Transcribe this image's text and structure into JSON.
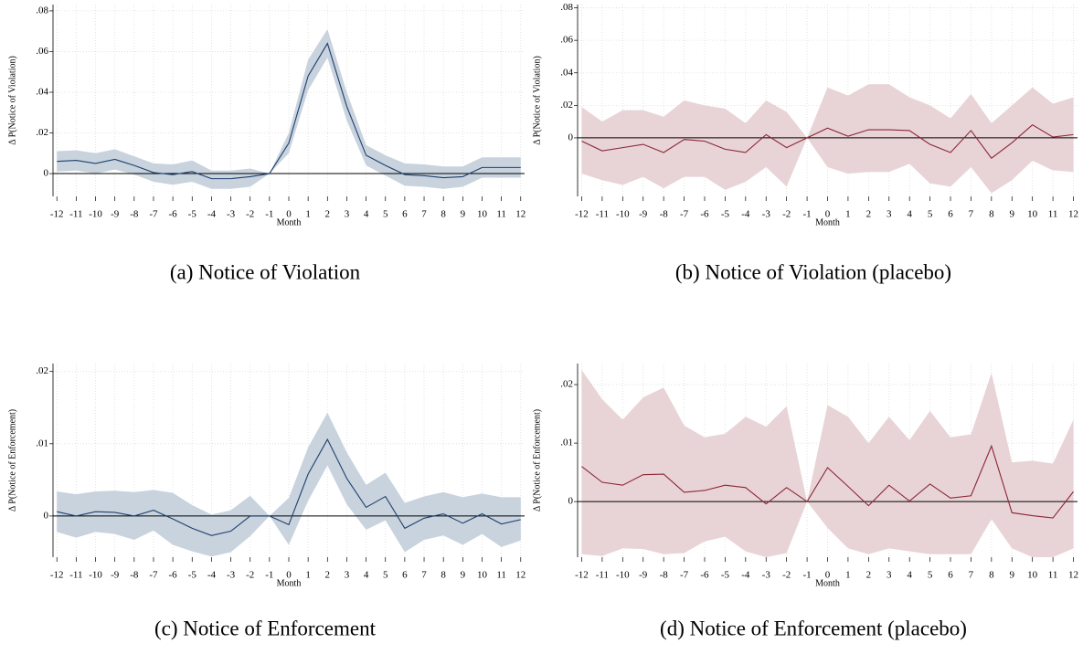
{
  "chart_data": [
    {
      "type": "line",
      "caption": "(a) Notice of Violation",
      "xlabel": "Month",
      "ylabel": "Δ P(Notice of Violation)",
      "x": [
        -12,
        -11,
        -10,
        -9,
        -8,
        -7,
        -6,
        -5,
        -4,
        -3,
        -2,
        -1,
        0,
        1,
        2,
        3,
        4,
        5,
        6,
        7,
        8,
        9,
        10,
        11,
        12
      ],
      "series": [
        {
          "color": "#1f3f6e",
          "band_color": "#c8d3de",
          "values": [
            0.006,
            0.0065,
            0.005,
            0.007,
            0.004,
            0.0005,
            -0.0005,
            0.001,
            -0.0025,
            -0.0025,
            -0.0015,
            0,
            0.015,
            0.048,
            0.064,
            0.033,
            0.009,
            0.004,
            -0.0005,
            -0.001,
            -0.002,
            -0.0015,
            0.003,
            0.003,
            0.003
          ],
          "upper": [
            0.011,
            0.0115,
            0.01,
            0.012,
            0.0085,
            0.005,
            0.0045,
            0.0065,
            0.0015,
            0.0015,
            0.0025,
            0,
            0.02,
            0.056,
            0.071,
            0.04,
            0.014,
            0.009,
            0.005,
            0.0045,
            0.0035,
            0.0035,
            0.008,
            0.008,
            0.008
          ],
          "lower": [
            0.001,
            0.0015,
            0,
            0.002,
            -0.0005,
            -0.004,
            -0.0055,
            -0.004,
            -0.0075,
            -0.0075,
            -0.0065,
            0,
            0.01,
            0.041,
            0.057,
            0.026,
            0.004,
            -0.001,
            -0.006,
            -0.0065,
            -0.0075,
            -0.0065,
            -0.002,
            -0.002,
            -0.002
          ]
        }
      ],
      "xlim": [
        -12.2,
        12.2
      ],
      "xticks": [
        -12,
        -11,
        -10,
        -9,
        -8,
        -7,
        -6,
        -5,
        -4,
        -3,
        -2,
        -1,
        0,
        1,
        2,
        3,
        4,
        5,
        6,
        7,
        8,
        9,
        10,
        11,
        12
      ],
      "ylim": [
        -0.0112,
        0.0831
      ],
      "yticks": [
        {
          "value": 0,
          "label": "0"
        },
        {
          "value": 0.02,
          "label": ".02"
        },
        {
          "value": 0.04,
          "label": ".04"
        },
        {
          "value": 0.06,
          "label": ".06"
        },
        {
          "value": 0.08,
          "label": ".08"
        }
      ],
      "reference_line": 0,
      "grid": true
    },
    {
      "type": "line",
      "caption": "(b) Notice of Violation (placebo)",
      "xlabel": "Month",
      "ylabel": "Δ P(Notice of Violation)",
      "x": [
        -12,
        -11,
        -10,
        -9,
        -8,
        -7,
        -6,
        -5,
        -4,
        -3,
        -2,
        -1,
        0,
        1,
        2,
        3,
        4,
        5,
        6,
        7,
        8,
        9,
        10,
        11,
        12
      ],
      "series": [
        {
          "color": "#8b2635",
          "band_color": "#e8d4d6",
          "values": [
            -0.002,
            -0.008,
            -0.006,
            -0.004,
            -0.009,
            -0.001,
            -0.002,
            -0.007,
            -0.009,
            0.002,
            -0.006,
            0,
            0.006,
            0.001,
            0.005,
            0.005,
            0.0045,
            -0.004,
            -0.009,
            0.0045,
            -0.0125,
            -0.003,
            0.008,
            0.0005,
            0.002
          ],
          "upper": [
            0.019,
            0.01,
            0.017,
            0.017,
            0.013,
            0.023,
            0.02,
            0.018,
            0.009,
            0.023,
            0.016,
            0,
            0.031,
            0.026,
            0.033,
            0.033,
            0.025,
            0.02,
            0.012,
            0.027,
            0.009,
            0.02,
            0.031,
            0.021,
            0.025
          ],
          "lower": [
            -0.022,
            -0.026,
            -0.029,
            -0.024,
            -0.031,
            -0.024,
            -0.024,
            -0.032,
            -0.027,
            -0.018,
            -0.03,
            0,
            -0.018,
            -0.022,
            -0.021,
            -0.021,
            -0.016,
            -0.028,
            -0.03,
            -0.018,
            -0.034,
            -0.026,
            -0.014,
            -0.02,
            -0.021
          ]
        }
      ],
      "xlim": [
        -12.2,
        12.2
      ],
      "xticks": [
        -12,
        -11,
        -10,
        -9,
        -8,
        -7,
        -6,
        -5,
        -4,
        -3,
        -2,
        -1,
        0,
        1,
        2,
        3,
        4,
        5,
        6,
        7,
        8,
        9,
        10,
        11,
        12
      ],
      "ylim": [
        -0.036,
        0.082
      ],
      "yticks": [
        {
          "value": 0,
          "label": "0"
        },
        {
          "value": 0.02,
          "label": ".02"
        },
        {
          "value": 0.04,
          "label": ".04"
        },
        {
          "value": 0.06,
          "label": ".06"
        },
        {
          "value": 0.08,
          "label": ".08"
        }
      ],
      "reference_line": 0,
      "grid": true
    },
    {
      "type": "line",
      "caption": "(c) Notice of Enforcement",
      "xlabel": "Month",
      "ylabel": "Δ P(Notice of Enforcement)",
      "x": [
        -12,
        -11,
        -10,
        -9,
        -8,
        -7,
        -6,
        -5,
        -4,
        -3,
        -2,
        -1,
        0,
        1,
        2,
        3,
        4,
        5,
        6,
        7,
        8,
        9,
        10,
        11,
        12
      ],
      "series": [
        {
          "color": "#1f3f6e",
          "band_color": "#c8d3de",
          "values": [
            0.0006,
            0,
            0.0006,
            0.0005,
            0,
            0.0008,
            -0.0004,
            -0.0017,
            -0.0027,
            -0.0021,
            0,
            0,
            -0.0012,
            0.0058,
            0.0106,
            0.0052,
            0.0012,
            0.0027,
            -0.0017,
            -0.0003,
            0.0003,
            -0.001,
            0.0003,
            -0.0011,
            -0.0005
          ],
          "upper": [
            0.0034,
            0.003,
            0.0034,
            0.0035,
            0.0033,
            0.0036,
            0.0032,
            0.0015,
            0.0002,
            0.0008,
            0.0028,
            0,
            0.0025,
            0.0095,
            0.0143,
            0.0088,
            0.0043,
            0.006,
            0.0018,
            0.0027,
            0.0033,
            0.0026,
            0.0031,
            0.0026,
            0.0026
          ],
          "lower": [
            -0.0022,
            -0.003,
            -0.0022,
            -0.0025,
            -0.0033,
            -0.002,
            -0.004,
            -0.0049,
            -0.0056,
            -0.005,
            -0.0028,
            0,
            -0.004,
            0.0021,
            0.007,
            0.0016,
            -0.0019,
            -0.0006,
            -0.005,
            -0.0033,
            -0.0027,
            -0.004,
            -0.0025,
            -0.0043,
            -0.0034
          ]
        }
      ],
      "xlim": [
        -12.2,
        12.2
      ],
      "xticks": [
        -12,
        -11,
        -10,
        -9,
        -8,
        -7,
        -6,
        -5,
        -4,
        -3,
        -2,
        -1,
        0,
        1,
        2,
        3,
        4,
        5,
        6,
        7,
        8,
        9,
        10,
        11,
        12
      ],
      "ylim": [
        -0.0057,
        0.0211
      ],
      "yticks": [
        {
          "value": 0,
          "label": "0"
        },
        {
          "value": 0.01,
          "label": ".01"
        },
        {
          "value": 0.02,
          "label": ".02"
        }
      ],
      "reference_line": 0,
      "grid": true
    },
    {
      "type": "line",
      "caption": "(d) Notice of Enforcement (placebo)",
      "xlabel": "Month",
      "ylabel": "Δ P(Notice of Enforcement)",
      "x": [
        -12,
        -11,
        -10,
        -9,
        -8,
        -7,
        -6,
        -5,
        -4,
        -3,
        -2,
        -1,
        0,
        1,
        2,
        3,
        4,
        5,
        6,
        7,
        8,
        9,
        10,
        11,
        12
      ],
      "series": [
        {
          "color": "#8b2635",
          "band_color": "#e8d4d6",
          "values": [
            0.006,
            0.0033,
            0.0028,
            0.0046,
            0.0047,
            0.0016,
            0.0019,
            0.0028,
            0.0024,
            -0.0004,
            0.0024,
            0,
            0.0058,
            0.0026,
            -0.0007,
            0.0028,
            0.0001,
            0.003,
            0.0006,
            0.001,
            0.0095,
            -0.0019,
            -0.0024,
            -0.0028,
            0.0017
          ],
          "upper": [
            0.0225,
            0.0175,
            0.014,
            0.0178,
            0.0195,
            0.013,
            0.011,
            0.0116,
            0.0145,
            0.0128,
            0.0163,
            0,
            0.0165,
            0.0145,
            0.01,
            0.0145,
            0.0105,
            0.0155,
            0.011,
            0.0115,
            0.022,
            0.0067,
            0.007,
            0.0065,
            0.014
          ],
          "lower": [
            -0.009,
            -0.0093,
            -0.008,
            -0.0081,
            -0.009,
            -0.0088,
            -0.0068,
            -0.006,
            -0.0085,
            -0.0095,
            -0.0088,
            0,
            -0.0045,
            -0.008,
            -0.009,
            -0.008,
            -0.0085,
            -0.009,
            -0.009,
            -0.009,
            -0.003,
            -0.008,
            -0.0095,
            -0.0095,
            -0.008
          ]
        }
      ],
      "xlim": [
        -12.2,
        12.2
      ],
      "xticks": [
        -12,
        -11,
        -10,
        -9,
        -8,
        -7,
        -6,
        -5,
        -4,
        -3,
        -2,
        -1,
        0,
        1,
        2,
        3,
        4,
        5,
        6,
        7,
        8,
        9,
        10,
        11,
        12
      ],
      "ylim": [
        -0.0095,
        0.0236
      ],
      "yticks": [
        {
          "value": 0,
          "label": "0"
        },
        {
          "value": 0.01,
          "label": ".01"
        },
        {
          "value": 0.02,
          "label": ".02"
        }
      ],
      "reference_line": 0,
      "grid": true
    }
  ]
}
